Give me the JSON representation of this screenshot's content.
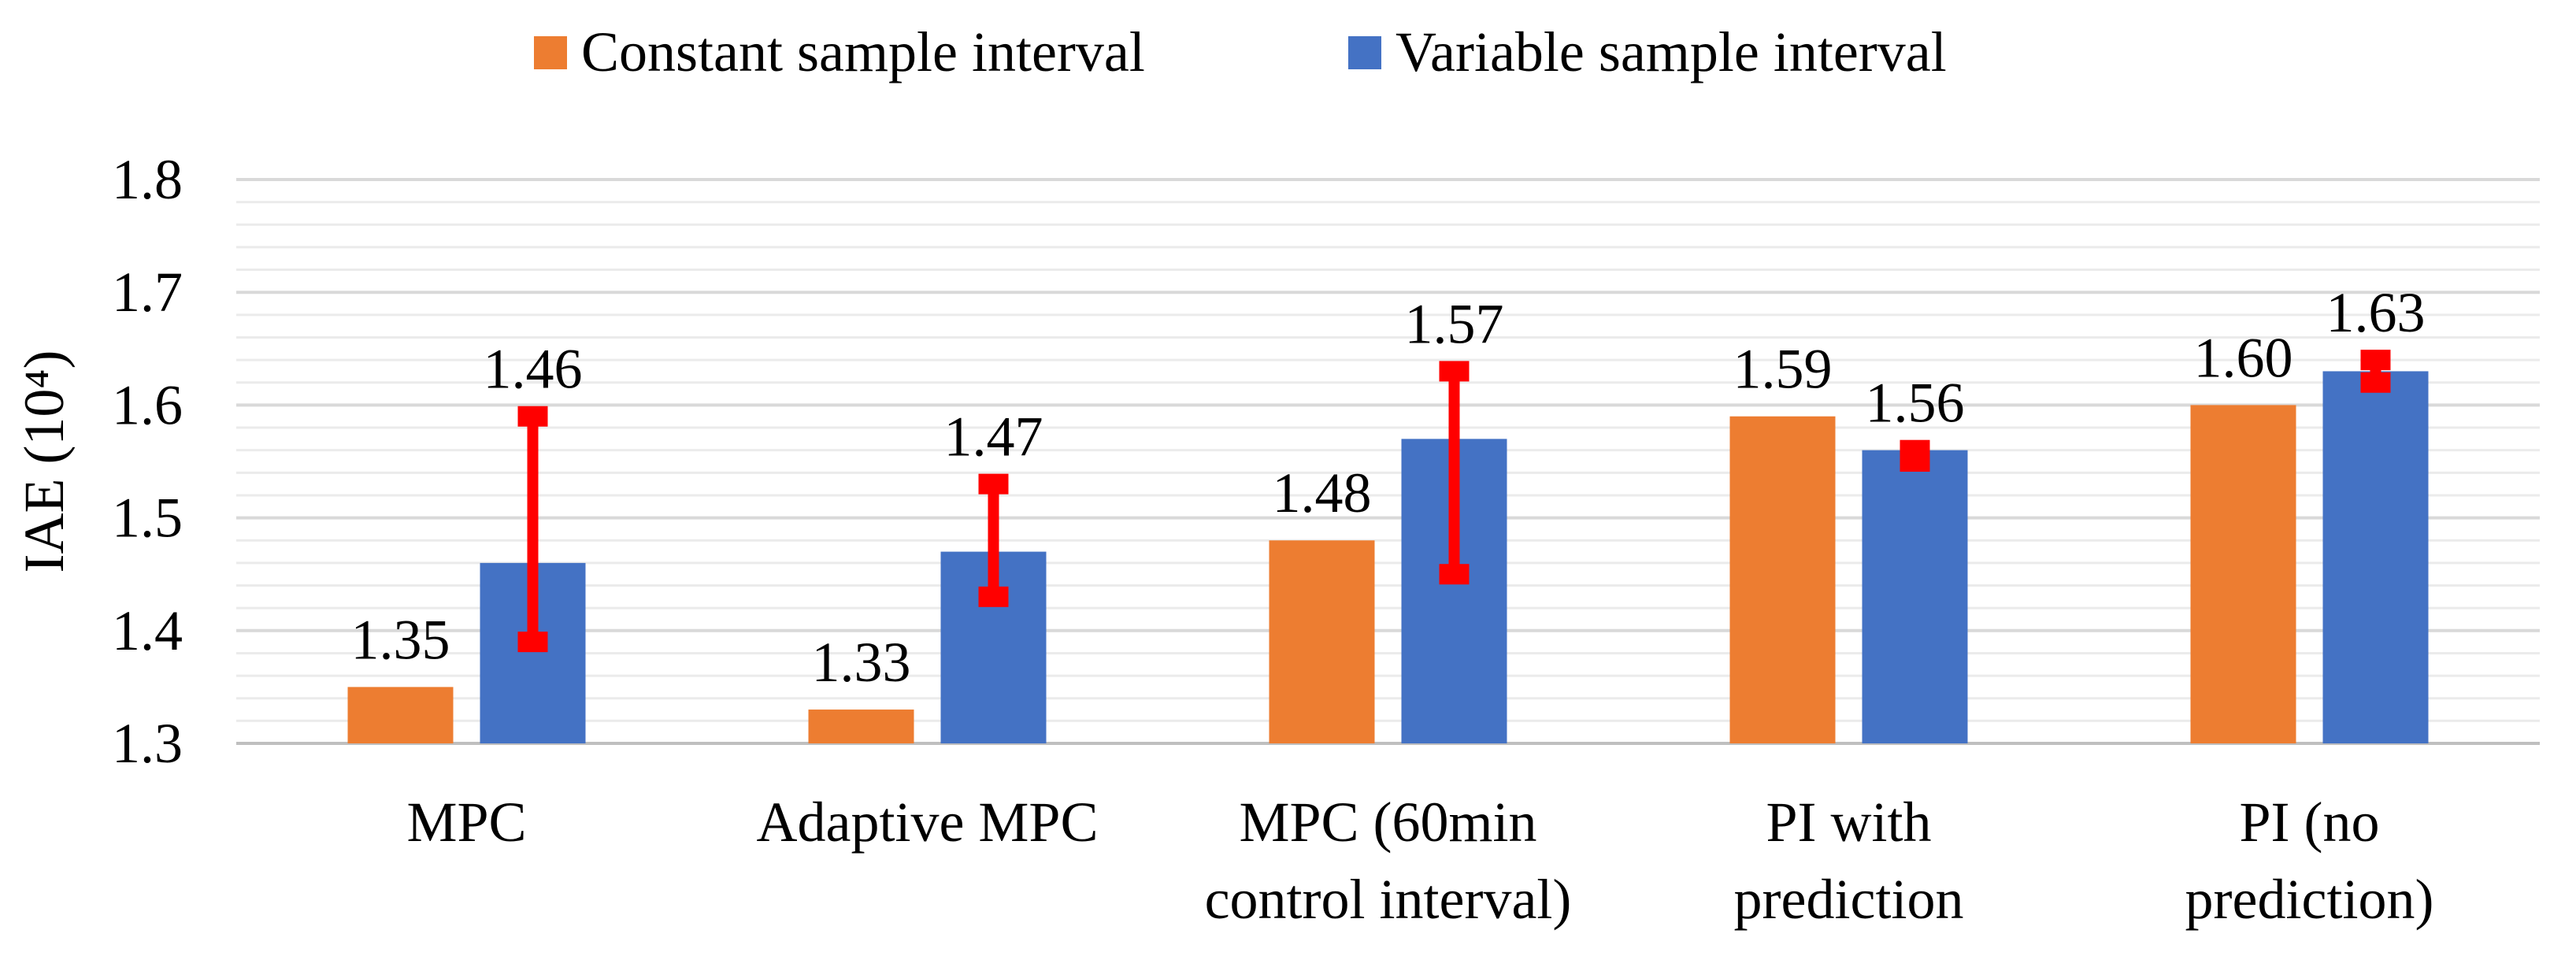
{
  "chart_data": {
    "type": "bar",
    "title": "",
    "xlabel": "",
    "ylabel": "IAE (10⁴)",
    "ylim": [
      1.3,
      1.8
    ],
    "yticks": [
      "1.3",
      "1.4",
      "1.5",
      "1.6",
      "1.7",
      "1.8"
    ],
    "ytick_values": [
      1.3,
      1.4,
      1.5,
      1.6,
      1.7,
      1.8
    ],
    "minor_grid_step": 0.02,
    "legend_position": "top-center",
    "categories": [
      [
        "MPC"
      ],
      [
        "Adaptive MPC"
      ],
      [
        "MPC (60min",
        "control interval)"
      ],
      [
        "PI with",
        "prediction"
      ],
      [
        "PI (no",
        "prediction)"
      ]
    ],
    "series": [
      {
        "name": "Constant sample interval",
        "color": "#ED7D31",
        "values": [
          1.35,
          1.33,
          1.48,
          1.59,
          1.6
        ],
        "labels": [
          "1.35",
          "1.33",
          "1.48",
          "1.59",
          "1.60"
        ]
      },
      {
        "name": "Variable sample interval",
        "color": "#4472C4",
        "values": [
          1.46,
          1.47,
          1.57,
          1.56,
          1.63
        ],
        "labels": [
          "1.46",
          "1.47",
          "1.57",
          "1.56",
          "1.63"
        ],
        "error_bars": {
          "color": "#FF0000",
          "low": [
            1.39,
            1.43,
            1.45,
            1.55,
            1.62
          ],
          "high": [
            1.59,
            1.53,
            1.63,
            1.56,
            1.64
          ]
        }
      }
    ]
  }
}
